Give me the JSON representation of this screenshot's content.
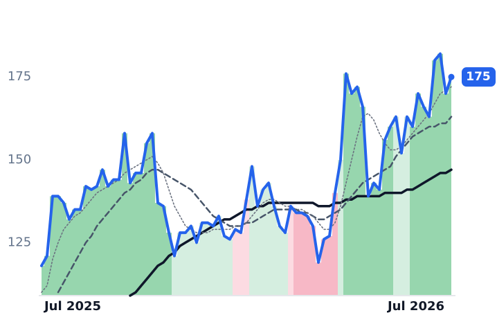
{
  "chart_data": {
    "type": "line",
    "categories": [
      null,
      null,
      null,
      null,
      null,
      null,
      "Jul 2025",
      null,
      null,
      null,
      null,
      null,
      null,
      null,
      null,
      null,
      null,
      null,
      null,
      null,
      null,
      null,
      null,
      null,
      null,
      null,
      null,
      null,
      null,
      null,
      null,
      null,
      null,
      null,
      null,
      null,
      null,
      null,
      null,
      null,
      null,
      null,
      null,
      null,
      null,
      null,
      null,
      null,
      null,
      null,
      null,
      null,
      null,
      null,
      null,
      null,
      null,
      null,
      null,
      null,
      null,
      null,
      null,
      null,
      null,
      null,
      null,
      null,
      "Jul 2026",
      null,
      null,
      null,
      null,
      null,
      null
    ],
    "series": [
      {
        "color": "#2563eb",
        "style": "solid",
        "values": [
          118,
          121,
          139,
          139,
          137,
          132,
          135,
          135,
          142,
          141,
          142,
          147,
          142,
          144,
          144,
          158,
          143,
          146,
          146,
          155,
          158,
          137,
          136,
          128,
          121,
          128,
          128,
          130,
          125,
          131,
          131,
          130,
          133,
          127,
          126,
          129,
          128,
          138,
          148,
          136,
          141,
          143,
          136,
          130,
          128,
          136,
          134,
          134,
          133,
          130,
          119,
          126,
          127,
          140,
          150,
          176,
          170,
          172,
          166,
          139,
          143,
          141,
          156,
          160,
          163,
          152,
          163,
          160,
          170,
          166,
          163,
          180,
          182,
          170,
          175
        ]
      },
      {
        "color": "#6b7280",
        "style": "dotted",
        "values": [
          110,
          112,
          120,
          125,
          129,
          131,
          133,
          134,
          136,
          138,
          140,
          141,
          142,
          143,
          144,
          146,
          147,
          148,
          149,
          150,
          151,
          149,
          146,
          141,
          136,
          133,
          130,
          129,
          128,
          128,
          128,
          129,
          129,
          129,
          129,
          130,
          130,
          131,
          133,
          135,
          137,
          138,
          138,
          137,
          136,
          136,
          135,
          135,
          134,
          133,
          131,
          129,
          129,
          131,
          136,
          143,
          150,
          157,
          163,
          164,
          162,
          158,
          155,
          153,
          153,
          154,
          156,
          158,
          160,
          162,
          164,
          167,
          170,
          171,
          172
        ]
      },
      {
        "color": "#475569",
        "style": "dashed",
        "values": [
          null,
          null,
          null,
          110,
          113,
          116,
          119,
          122,
          125,
          127,
          130,
          132,
          134,
          136,
          138,
          140,
          141,
          143,
          144,
          146,
          147,
          147,
          146,
          145,
          144,
          143,
          142,
          141,
          139,
          137,
          135,
          133,
          132,
          131,
          130,
          130,
          130,
          131,
          131,
          132,
          133,
          134,
          135,
          135,
          135,
          135,
          135,
          134,
          134,
          133,
          132,
          132,
          133,
          134,
          135,
          137,
          139,
          141,
          143,
          144,
          145,
          146,
          147,
          148,
          151,
          153,
          155,
          157,
          158,
          159,
          160,
          160,
          161,
          161,
          163
        ]
      },
      {
        "color": "#0f172a",
        "style": "solid",
        "values": [
          null,
          null,
          null,
          null,
          null,
          null,
          null,
          null,
          null,
          null,
          null,
          null,
          null,
          null,
          null,
          null,
          109,
          110,
          112,
          114,
          116,
          118,
          119,
          121,
          122,
          124,
          125,
          126,
          127,
          128,
          129,
          130,
          131,
          132,
          132,
          133,
          134,
          135,
          135,
          136,
          136,
          137,
          137,
          137,
          137,
          137,
          137,
          137,
          137,
          137,
          136,
          136,
          136,
          137,
          137,
          138,
          138,
          139,
          139,
          139,
          139,
          139,
          140,
          140,
          140,
          140,
          141,
          141,
          142,
          143,
          144,
          145,
          146,
          146,
          147
        ]
      }
    ],
    "zones": "GGGGGGGGGGGGGGGGGGGGGGGGgggggggggggrrrgggggggrRRRRRRRRgGGGGGGGGGgggGGGGGGGG",
    "zone_colors": {
      "G": "#97d6ae",
      "g": "#d5eee0",
      "r": "#fcdbe2",
      "R": "#f7b8c6"
    },
    "ylim": [
      109,
      193
    ],
    "yticks": [
      125,
      150,
      175
    ]
  }
}
